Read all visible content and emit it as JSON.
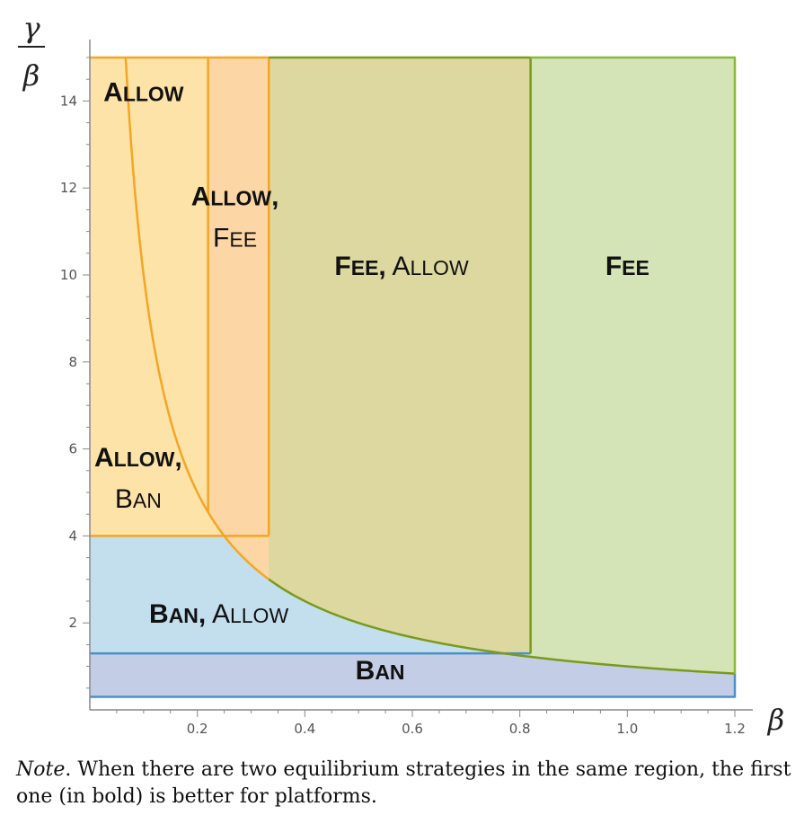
{
  "chart_data": {
    "type": "area",
    "xlabel": "β",
    "ylabel_num": "γ",
    "ylabel_den": "β",
    "xlim": [
      0,
      1.2
    ],
    "ylim": [
      0,
      15
    ],
    "xticks": [
      0.2,
      0.4,
      0.6,
      0.8,
      1.0,
      1.2
    ],
    "xtick_labels": [
      "0.2",
      "0.4",
      "0.6",
      "0.8",
      "1.0",
      "1.2"
    ],
    "yticks": [
      2,
      4,
      6,
      8,
      10,
      12,
      14
    ],
    "ytick_labels": [
      "2",
      "4",
      "6",
      "8",
      "10",
      "12",
      "14"
    ],
    "boundaries": {
      "curve": "y = 1/x",
      "y_ban_top": 1.3,
      "y_ban_bottom": 0.3,
      "y_allow_low": 4,
      "x_allowfee_left": 0.22,
      "x_allowfee_right": 0.333,
      "x_fee_left": 0.82,
      "x_max": 1.2,
      "y_max": 15
    },
    "regions": [
      {
        "id": "allow",
        "name": "Allow",
        "fill": "#fde3a7",
        "label": {
          "bold": "Allow",
          "normal": ""
        },
        "x": 0.1,
        "y": 14
      },
      {
        "id": "allow-fee",
        "name": "Allow, Fee",
        "fill": "#fcd6a4",
        "label": {
          "bold": "Allow,",
          "normal": "Fee"
        },
        "x": 0.27,
        "y": 11.6
      },
      {
        "id": "allow-ban",
        "name": "Allow, Ban",
        "fill": "#fde3a7",
        "label": {
          "bold": "Allow,",
          "normal": "Ban"
        },
        "x": 0.09,
        "y": 5.6
      },
      {
        "id": "fee-allow",
        "name": "Fee, Allow",
        "fill": "#dcd89f",
        "label": {
          "bold": "Fee,",
          "normal": "Allow"
        },
        "x": 0.58,
        "y": 10
      },
      {
        "id": "fee",
        "name": "Fee",
        "fill": "#d4e4b6",
        "label": {
          "bold": "Fee",
          "normal": ""
        },
        "x": 1.0,
        "y": 10
      },
      {
        "id": "ban-allow",
        "name": "Ban, Allow",
        "fill": "#c3dfee",
        "label": {
          "bold": "Ban,",
          "normal": "Allow"
        },
        "x": 0.24,
        "y": 2.0
      },
      {
        "id": "ban",
        "name": "Ban",
        "fill": "#c3cde6",
        "label": {
          "bold": "Ban",
          "normal": ""
        },
        "x": 0.54,
        "y": 0.7
      }
    ],
    "colors": {
      "orange": "#f5a524",
      "olive": "#7a9a1a",
      "green": "#8ab83a",
      "blue": "#4a90c8",
      "axis": "#888888"
    }
  },
  "note": {
    "lead": "Note",
    "text": ". When there are two equilibrium strategies in the same region, the first one (in bold) is better for platforms."
  }
}
